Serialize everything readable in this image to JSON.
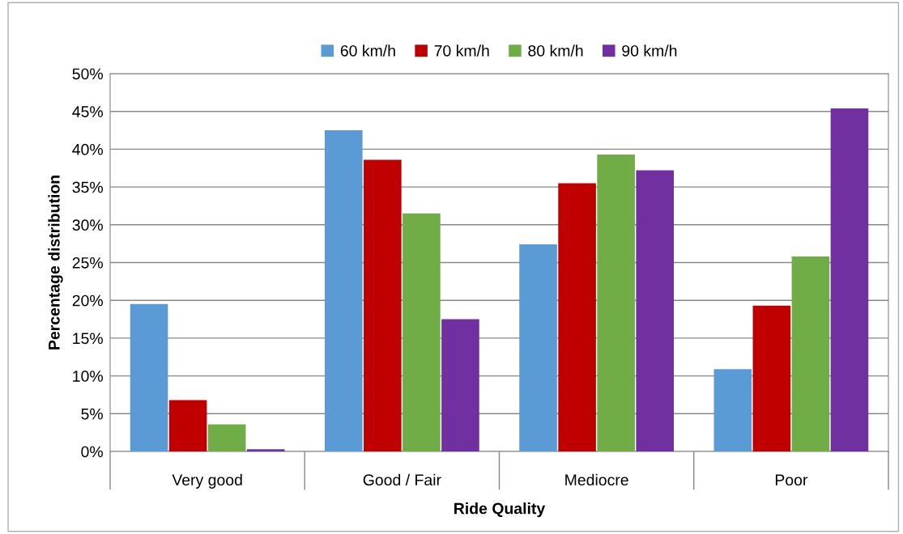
{
  "chart_data": {
    "type": "bar",
    "xlabel": "Ride Quality",
    "ylabel": "Percentage distribution",
    "categories": [
      "Very good",
      "Good / Fair",
      "Mediocre",
      "Poor"
    ],
    "series": [
      {
        "name": "60 km/h",
        "color": "#5b9bd5",
        "values": [
          19.5,
          42.5,
          27.4,
          10.9
        ]
      },
      {
        "name": "70 km/h",
        "color": "#c00000",
        "values": [
          6.8,
          38.6,
          35.5,
          19.3
        ]
      },
      {
        "name": "80 km/h",
        "color": "#70ad47",
        "values": [
          3.6,
          31.5,
          39.3,
          25.8
        ]
      },
      {
        "name": "90 km/h",
        "color": "#7030a0",
        "values": [
          0.3,
          17.5,
          37.2,
          45.4
        ]
      }
    ],
    "ylim": [
      0,
      50
    ],
    "yticks": [
      {
        "value": 0,
        "label": "0%"
      },
      {
        "value": 5,
        "label": "5%"
      },
      {
        "value": 10,
        "label": "10%"
      },
      {
        "value": 15,
        "label": "15%"
      },
      {
        "value": 20,
        "label": "20%"
      },
      {
        "value": 25,
        "label": "25%"
      },
      {
        "value": 30,
        "label": "30%"
      },
      {
        "value": 35,
        "label": "35%"
      },
      {
        "value": 40,
        "label": "40%"
      },
      {
        "value": 45,
        "label": "45%"
      },
      {
        "value": 50,
        "label": "50%"
      }
    ],
    "grid": "y",
    "legend": "top"
  }
}
